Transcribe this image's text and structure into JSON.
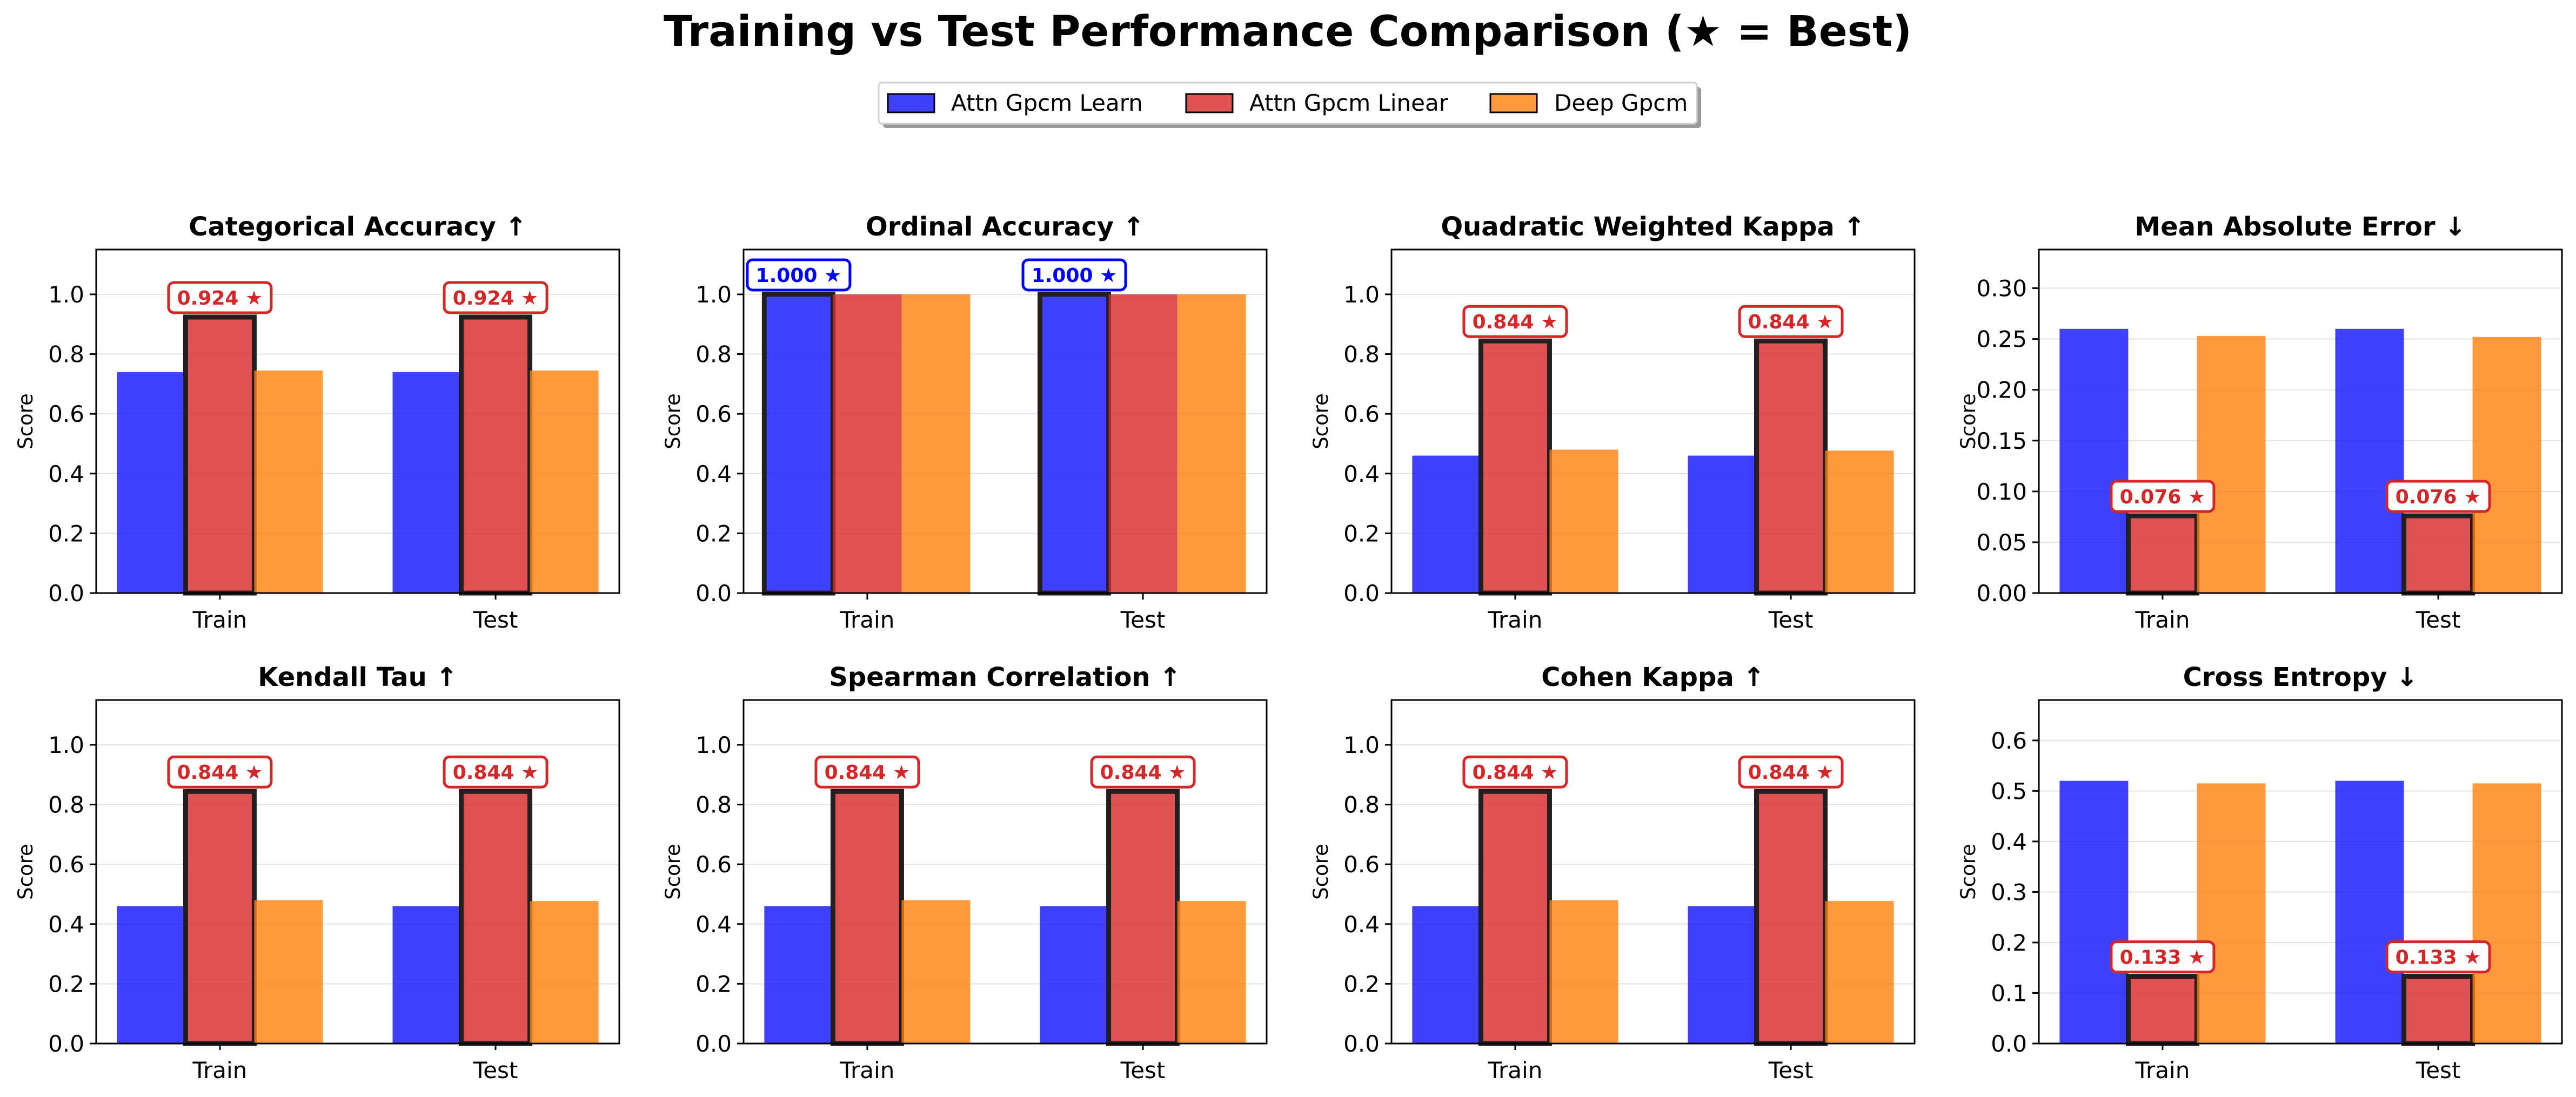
{
  "title": "Training vs Test Performance Comparison (★ = Best)",
  "legend": {
    "placement": "top-center",
    "items": [
      {
        "label": "Attn Gpcm Learn",
        "color": "#0000ff"
      },
      {
        "label": "Attn Gpcm Linear",
        "color": "#d62728"
      },
      {
        "label": "Deep Gpcm",
        "color": "#ff7f0e"
      }
    ]
  },
  "chart_data": [
    {
      "type": "bar",
      "title": "Categorical Accuracy ↑",
      "xlabel": "",
      "ylabel": "Score",
      "categories": [
        "Train",
        "Test"
      ],
      "ylim": [
        0,
        1.15
      ],
      "yticks": [
        "0.0",
        "0.2",
        "0.4",
        "0.6",
        "0.8",
        "1.0"
      ],
      "grid": "y",
      "series": [
        {
          "name": "Attn Gpcm Learn",
          "values": [
            0.74,
            0.74
          ]
        },
        {
          "name": "Attn Gpcm Linear",
          "values": [
            0.924,
            0.924
          ]
        },
        {
          "name": "Deep Gpcm",
          "values": [
            0.745,
            0.745
          ]
        }
      ],
      "best_series": 1,
      "best_labels": [
        "0.924 ★",
        "0.924 ★"
      ]
    },
    {
      "type": "bar",
      "title": "Ordinal Accuracy ↑",
      "xlabel": "",
      "ylabel": "Score",
      "categories": [
        "Train",
        "Test"
      ],
      "ylim": [
        0,
        1.15
      ],
      "yticks": [
        "0.0",
        "0.2",
        "0.4",
        "0.6",
        "0.8",
        "1.0"
      ],
      "grid": "y",
      "series": [
        {
          "name": "Attn Gpcm Learn",
          "values": [
            1.0,
            1.0
          ]
        },
        {
          "name": "Attn Gpcm Linear",
          "values": [
            1.0,
            1.0
          ]
        },
        {
          "name": "Deep Gpcm",
          "values": [
            1.0,
            1.0
          ]
        }
      ],
      "best_series": 0,
      "best_labels": [
        "1.000 ★",
        "1.000 ★"
      ]
    },
    {
      "type": "bar",
      "title": "Quadratic Weighted Kappa ↑",
      "xlabel": "",
      "ylabel": "Score",
      "categories": [
        "Train",
        "Test"
      ],
      "ylim": [
        0,
        1.15
      ],
      "yticks": [
        "0.0",
        "0.2",
        "0.4",
        "0.6",
        "0.8",
        "1.0"
      ],
      "grid": "y",
      "series": [
        {
          "name": "Attn Gpcm Learn",
          "values": [
            0.46,
            0.46
          ]
        },
        {
          "name": "Attn Gpcm Linear",
          "values": [
            0.844,
            0.844
          ]
        },
        {
          "name": "Deep Gpcm",
          "values": [
            0.48,
            0.477
          ]
        }
      ],
      "best_series": 1,
      "best_labels": [
        "0.844 ★",
        "0.844 ★"
      ]
    },
    {
      "type": "bar",
      "title": "Mean Absolute Error ↓",
      "xlabel": "",
      "ylabel": "Score",
      "categories": [
        "Train",
        "Test"
      ],
      "ylim": [
        0,
        0.338
      ],
      "yticks": [
        "0.00",
        "0.05",
        "0.10",
        "0.15",
        "0.20",
        "0.25",
        "0.30"
      ],
      "grid": "y",
      "series": [
        {
          "name": "Attn Gpcm Learn",
          "values": [
            0.26,
            0.26
          ]
        },
        {
          "name": "Attn Gpcm Linear",
          "values": [
            0.076,
            0.076
          ]
        },
        {
          "name": "Deep Gpcm",
          "values": [
            0.253,
            0.252
          ]
        }
      ],
      "best_series": 1,
      "best_labels": [
        "0.076 ★",
        "0.076 ★"
      ]
    },
    {
      "type": "bar",
      "title": "Kendall Tau ↑",
      "xlabel": "",
      "ylabel": "Score",
      "categories": [
        "Train",
        "Test"
      ],
      "ylim": [
        0,
        1.15
      ],
      "yticks": [
        "0.0",
        "0.2",
        "0.4",
        "0.6",
        "0.8",
        "1.0"
      ],
      "grid": "y",
      "series": [
        {
          "name": "Attn Gpcm Learn",
          "values": [
            0.46,
            0.46
          ]
        },
        {
          "name": "Attn Gpcm Linear",
          "values": [
            0.844,
            0.844
          ]
        },
        {
          "name": "Deep Gpcm",
          "values": [
            0.48,
            0.477
          ]
        }
      ],
      "best_series": 1,
      "best_labels": [
        "0.844 ★",
        "0.844 ★"
      ]
    },
    {
      "type": "bar",
      "title": "Spearman Correlation ↑",
      "xlabel": "",
      "ylabel": "Score",
      "categories": [
        "Train",
        "Test"
      ],
      "ylim": [
        0,
        1.15
      ],
      "yticks": [
        "0.0",
        "0.2",
        "0.4",
        "0.6",
        "0.8",
        "1.0"
      ],
      "grid": "y",
      "series": [
        {
          "name": "Attn Gpcm Learn",
          "values": [
            0.46,
            0.46
          ]
        },
        {
          "name": "Attn Gpcm Linear",
          "values": [
            0.844,
            0.844
          ]
        },
        {
          "name": "Deep Gpcm",
          "values": [
            0.48,
            0.477
          ]
        }
      ],
      "best_series": 1,
      "best_labels": [
        "0.844 ★",
        "0.844 ★"
      ]
    },
    {
      "type": "bar",
      "title": "Cohen Kappa ↑",
      "xlabel": "",
      "ylabel": "Score",
      "categories": [
        "Train",
        "Test"
      ],
      "ylim": [
        0,
        1.15
      ],
      "yticks": [
        "0.0",
        "0.2",
        "0.4",
        "0.6",
        "0.8",
        "1.0"
      ],
      "grid": "y",
      "series": [
        {
          "name": "Attn Gpcm Learn",
          "values": [
            0.46,
            0.46
          ]
        },
        {
          "name": "Attn Gpcm Linear",
          "values": [
            0.844,
            0.844
          ]
        },
        {
          "name": "Deep Gpcm",
          "values": [
            0.48,
            0.477
          ]
        }
      ],
      "best_series": 1,
      "best_labels": [
        "0.844 ★",
        "0.844 ★"
      ]
    },
    {
      "type": "bar",
      "title": "Cross Entropy ↓",
      "xlabel": "",
      "ylabel": "Score",
      "categories": [
        "Train",
        "Test"
      ],
      "ylim": [
        0,
        0.68
      ],
      "yticks": [
        "0.0",
        "0.1",
        "0.2",
        "0.3",
        "0.4",
        "0.5",
        "0.6"
      ],
      "grid": "y",
      "series": [
        {
          "name": "Attn Gpcm Learn",
          "values": [
            0.52,
            0.52
          ]
        },
        {
          "name": "Attn Gpcm Linear",
          "values": [
            0.133,
            0.133
          ]
        },
        {
          "name": "Deep Gpcm",
          "values": [
            0.515,
            0.515
          ]
        }
      ],
      "best_series": 1,
      "best_labels": [
        "0.133 ★",
        "0.133 ★"
      ]
    }
  ]
}
